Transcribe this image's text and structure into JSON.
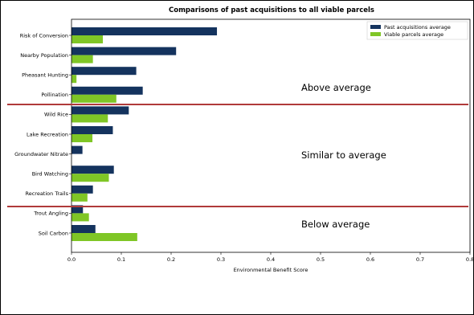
{
  "chart_data": {
    "type": "bar",
    "orientation": "horizontal",
    "title": "Comparisons of past acquisitions to all viable parcels",
    "xlabel": "Environmental Benefit Score",
    "ylabel": "",
    "xlim": [
      0,
      0.8
    ],
    "xticks": [
      "0.0",
      "0.1",
      "0.2",
      "0.3",
      "0.4",
      "0.5",
      "0.6",
      "0.7",
      "0.8"
    ],
    "categories": [
      "Risk of Conversion",
      "Nearby Population",
      "Pheasant Hunting",
      "Pollination",
      "Wild Rice",
      "Lake Recreation",
      "Groundwater Nitrate",
      "Bird Watching",
      "Recreation Trails",
      "Trout Angling",
      "Soil Carbon"
    ],
    "series": [
      {
        "name": "Past acquisitions average",
        "color": "#14335e",
        "values": [
          0.292,
          0.21,
          0.13,
          0.143,
          0.115,
          0.083,
          0.022,
          0.085,
          0.043,
          0.023,
          0.048
        ]
      },
      {
        "name": "Viable parcels average",
        "color": "#7fc626",
        "values": [
          0.063,
          0.043,
          0.01,
          0.09,
          0.073,
          0.042,
          0.0,
          0.075,
          0.032,
          0.035,
          0.132
        ]
      }
    ],
    "legend_position": "top-right",
    "grid": false,
    "annotations": [
      "Above average",
      "Similar to average",
      "Below average"
    ],
    "divider_color": "#b03a3a"
  }
}
